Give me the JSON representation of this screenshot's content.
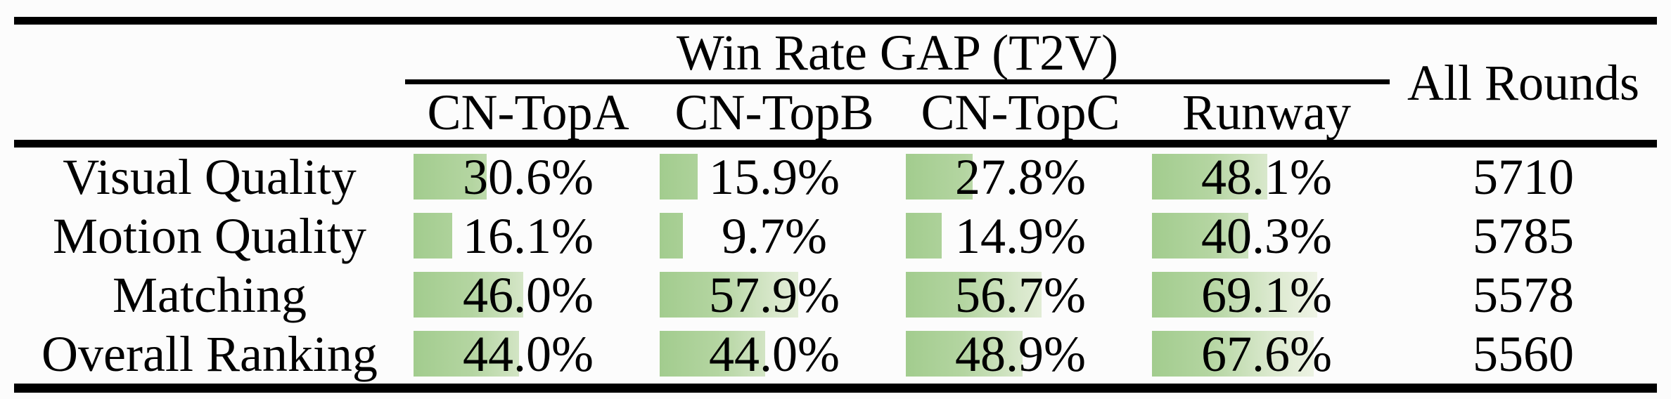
{
  "table": {
    "title": "Win Rate GAP (T2V)",
    "all_rounds_header": "All Rounds",
    "model_columns": [
      "CN-TopA",
      "CN-TopB",
      "CN-TopC",
      "Runway"
    ],
    "rows": [
      {
        "label": "Visual Quality",
        "cells": [
          {
            "text": "30.6%",
            "pct": 30.6
          },
          {
            "text": "15.9%",
            "pct": 15.9
          },
          {
            "text": "27.8%",
            "pct": 27.8
          },
          {
            "text": "48.1%",
            "pct": 48.1
          }
        ],
        "all_rounds": "5710"
      },
      {
        "label": "Motion Quality",
        "cells": [
          {
            "text": "16.1%",
            "pct": 16.1
          },
          {
            "text": "9.7%",
            "pct": 9.7
          },
          {
            "text": "14.9%",
            "pct": 14.9
          },
          {
            "text": "40.3%",
            "pct": 40.3
          }
        ],
        "all_rounds": "5785"
      },
      {
        "label": "Matching",
        "cells": [
          {
            "text": "46.0%",
            "pct": 46.0
          },
          {
            "text": "57.9%",
            "pct": 57.9
          },
          {
            "text": "56.7%",
            "pct": 56.7
          },
          {
            "text": "69.1%",
            "pct": 69.1
          }
        ],
        "all_rounds": "5578"
      },
      {
        "label": "Overall Ranking",
        "cells": [
          {
            "text": "44.0%",
            "pct": 44.0
          },
          {
            "text": "44.0%",
            "pct": 44.0
          },
          {
            "text": "48.9%",
            "pct": 48.9
          },
          {
            "text": "67.6%",
            "pct": 67.6
          }
        ],
        "all_rounds": "5560"
      }
    ],
    "colors": {
      "background": "#fcfcfc",
      "text": "#000000",
      "rule": "#000000",
      "bar_green": "#a2cc8e",
      "bar_mid": "#b4d5a1",
      "bar_fade": "#d9e8cc",
      "bar_light": "#eef3e5"
    }
  },
  "chart_data": {
    "type": "table",
    "title": "Win Rate GAP (T2V)",
    "columns": [
      "CN-TopA",
      "CN-TopB",
      "CN-TopC",
      "Runway",
      "All Rounds"
    ],
    "row_labels": [
      "Visual Quality",
      "Motion Quality",
      "Matching",
      "Overall Ranking"
    ],
    "series": [
      {
        "name": "Visual Quality",
        "values": [
          30.6,
          15.9,
          27.8,
          48.1
        ],
        "all_rounds": 5710
      },
      {
        "name": "Motion Quality",
        "values": [
          16.1,
          9.7,
          14.9,
          40.3
        ],
        "all_rounds": 5785
      },
      {
        "name": "Matching",
        "values": [
          46.0,
          57.9,
          56.7,
          69.1
        ],
        "all_rounds": 5578
      },
      {
        "name": "Overall Ranking",
        "values": [
          44.0,
          44.0,
          48.9,
          67.6
        ],
        "all_rounds": 5560
      }
    ],
    "value_unit": "%",
    "bar_scale_note": "in-cell horizontal bars proportional to percentage, green fading to light green"
  }
}
